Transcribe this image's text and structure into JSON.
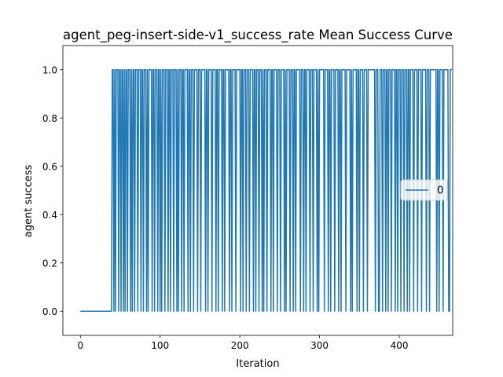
{
  "chart_data": {
    "type": "line",
    "title": "agent_peg-insert-side-v1_success_rate Mean Success Curve",
    "xlabel": "Iteration",
    "ylabel": "agent success",
    "xlim": [
      -22,
      467
    ],
    "ylim": [
      -0.1,
      1.1
    ],
    "x_ticks": [
      0,
      100,
      200,
      300,
      400
    ],
    "y_ticks": [
      0.0,
      0.2,
      0.4,
      0.6,
      0.8,
      1.0
    ],
    "x_tick_labels": [
      "0",
      "100",
      "200",
      "300",
      "400"
    ],
    "y_tick_labels": [
      "0.0",
      "0.2",
      "0.4",
      "0.6",
      "0.8",
      "1.0"
    ],
    "legend_position": "center-right",
    "grid": false,
    "series": [
      {
        "name": "0",
        "color": "#1f77b4",
        "x_start": 0,
        "values": [
          0,
          0,
          0,
          0,
          0,
          0,
          0,
          0,
          0,
          0,
          0,
          0,
          0,
          0,
          0,
          0,
          0,
          0,
          0,
          0,
          0,
          0,
          0,
          0,
          0,
          0,
          0,
          0,
          0,
          0,
          0,
          0,
          0,
          0,
          0,
          0,
          0,
          0,
          0,
          0,
          1,
          1,
          0,
          1,
          0,
          1,
          1,
          1,
          0,
          1,
          1,
          0,
          1,
          1,
          0,
          1,
          0,
          1,
          1,
          0,
          1,
          1,
          1,
          0,
          1,
          0,
          1,
          1,
          0,
          1,
          1,
          1,
          0,
          1,
          1,
          1,
          0,
          1,
          1,
          0,
          1,
          1,
          1,
          0,
          1,
          0,
          1,
          1,
          1,
          1,
          0,
          1,
          1,
          0,
          1,
          1,
          1,
          0,
          1,
          1,
          0,
          1,
          0,
          1,
          1,
          1,
          0,
          1,
          1,
          1,
          0,
          1,
          1,
          0,
          1,
          1,
          1,
          0,
          1,
          1,
          1,
          0,
          1,
          0,
          1,
          1,
          1,
          0,
          1,
          1,
          0,
          1,
          1,
          1,
          1,
          0,
          1,
          1,
          0,
          1,
          1,
          1,
          0,
          1,
          1,
          1,
          1,
          0,
          1,
          1,
          1,
          0,
          1,
          1,
          1,
          1,
          1,
          0,
          1,
          1,
          0,
          1,
          1,
          1,
          1,
          0,
          1,
          1,
          1,
          1,
          0,
          1,
          1,
          0,
          1,
          1,
          1,
          1,
          0,
          1,
          1,
          0,
          1,
          1,
          1,
          1,
          1,
          0,
          1,
          1,
          0,
          1,
          1,
          1,
          1,
          0,
          1,
          1,
          1,
          1,
          1,
          0,
          1,
          1,
          0,
          1,
          1,
          1,
          0,
          1,
          1,
          1,
          0,
          1,
          1,
          1,
          1,
          0,
          1,
          1,
          0,
          1,
          1,
          1,
          0,
          1,
          1,
          1,
          0,
          1,
          0,
          1,
          1,
          1,
          0,
          1,
          1,
          1,
          1,
          0,
          1,
          1,
          0,
          1,
          1,
          1,
          1,
          0,
          1,
          1,
          1,
          0,
          1,
          1,
          1,
          1,
          0,
          1,
          0,
          1,
          1,
          1,
          1,
          0,
          1,
          1,
          1,
          0,
          1,
          1,
          0,
          1,
          1,
          1,
          1,
          1,
          0,
          1,
          1,
          1,
          0,
          1,
          1,
          0,
          1,
          1,
          1,
          1,
          0,
          1,
          1,
          1,
          0,
          1,
          1,
          1,
          1,
          0,
          1,
          0,
          1,
          1,
          1,
          1,
          1,
          1,
          0,
          1,
          1,
          1,
          1,
          0,
          1,
          1,
          0,
          1,
          1,
          1,
          1,
          0,
          1,
          1,
          1,
          1,
          0,
          1,
          1,
          0,
          1,
          1,
          1,
          1,
          1,
          0,
          1,
          1,
          1,
          1,
          1,
          0,
          1,
          0,
          1,
          1,
          1,
          1,
          1,
          0,
          1,
          1,
          0,
          1,
          1,
          1,
          1,
          0,
          1,
          1,
          1,
          1,
          0,
          1,
          1,
          1,
          1,
          1,
          1,
          1,
          1,
          1,
          0,
          1,
          1,
          1,
          0,
          0,
          1,
          1,
          1,
          0,
          1,
          1,
          1,
          0,
          1,
          1,
          0,
          1,
          1,
          1,
          0,
          1,
          1,
          1,
          1,
          0,
          1,
          1,
          0,
          1,
          1,
          1,
          0,
          1,
          1,
          1,
          0,
          1,
          1,
          1,
          0,
          1,
          1,
          0,
          1,
          1,
          1,
          1,
          0,
          1,
          1,
          1,
          1,
          0,
          1,
          1,
          1,
          1,
          0,
          1,
          1,
          1,
          1,
          1,
          0,
          1,
          1,
          1,
          0,
          1,
          1,
          1,
          1,
          1,
          1,
          1,
          1,
          0,
          1,
          1,
          0,
          1,
          1,
          1,
          1,
          0,
          1,
          1,
          1,
          1,
          1,
          1,
          0,
          0,
          1,
          1,
          1
        ]
      }
    ]
  }
}
